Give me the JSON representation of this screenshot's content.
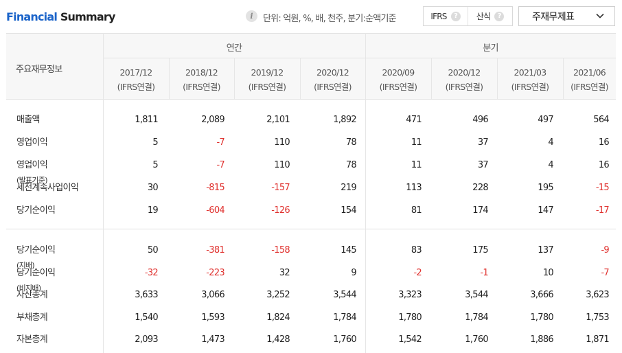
{
  "header": {
    "title_part1": "Financial",
    "title_part2": " Summary",
    "info_icon": "info-icon",
    "unit_text": "단위: 억원, %, 배, 천주, 분기:순액기준",
    "toggle": [
      {
        "label": "IFRS",
        "icon": "question-icon"
      },
      {
        "label": "산식",
        "icon": "question-icon"
      }
    ],
    "question_mark": "?",
    "dropdown": {
      "label": "주재무제표",
      "icon": "chevron-down-icon"
    }
  },
  "table": {
    "corner_label": "주요재무정보",
    "groups": [
      {
        "label": "연간"
      },
      {
        "label": "분기"
      }
    ],
    "columns": [
      {
        "period": "2017/12",
        "basis": "(IFRS연결)"
      },
      {
        "period": "2018/12",
        "basis": "(IFRS연결)"
      },
      {
        "period": "2019/12",
        "basis": "(IFRS연결)"
      },
      {
        "period": "2020/12",
        "basis": "(IFRS연결)"
      },
      {
        "period": "2020/09",
        "basis": "(IFRS연결)"
      },
      {
        "period": "2020/12",
        "basis": "(IFRS연결)"
      },
      {
        "period": "2021/03",
        "basis": "(IFRS연결)"
      },
      {
        "period": "2021/06",
        "basis": "(IFRS연결)"
      }
    ],
    "rows": [
      {
        "label": "매출액",
        "suffix": "",
        "values": [
          "1,811",
          "2,089",
          "2,101",
          "1,892",
          "471",
          "496",
          "497",
          "564"
        ]
      },
      {
        "label": "영업이익",
        "suffix": "",
        "values": [
          "5",
          "-7",
          "110",
          "78",
          "11",
          "37",
          "4",
          "16"
        ]
      },
      {
        "label": "영업이익",
        "suffix": "(발표기준)",
        "values": [
          "5",
          "-7",
          "110",
          "78",
          "11",
          "37",
          "4",
          "16"
        ]
      },
      {
        "label": "세전계속사업이익",
        "suffix": "",
        "values": [
          "30",
          "-815",
          "-157",
          "219",
          "113",
          "228",
          "195",
          "-15"
        ]
      },
      {
        "label": "당기순이익",
        "suffix": "",
        "values": [
          "19",
          "-604",
          "-126",
          "154",
          "81",
          "174",
          "147",
          "-17"
        ]
      },
      {
        "label": "당기순이익",
        "suffix": "(지배)",
        "values": [
          "50",
          "-381",
          "-158",
          "145",
          "83",
          "175",
          "137",
          "-9"
        ]
      },
      {
        "label": "당기순이익",
        "suffix": "(비지배)",
        "values": [
          "-32",
          "-223",
          "32",
          "9",
          "-2",
          "-1",
          "10",
          "-7"
        ]
      },
      {
        "label": "자산총계",
        "suffix": "",
        "values": [
          "3,633",
          "3,066",
          "3,252",
          "3,544",
          "3,323",
          "3,544",
          "3,666",
          "3,623"
        ]
      },
      {
        "label": "부채총계",
        "suffix": "",
        "values": [
          "1,540",
          "1,593",
          "1,824",
          "1,784",
          "1,780",
          "1,784",
          "1,780",
          "1,753"
        ]
      },
      {
        "label": "자본총계",
        "suffix": "",
        "values": [
          "2,093",
          "1,473",
          "1,428",
          "1,760",
          "1,542",
          "1,760",
          "1,886",
          "1,871"
        ]
      }
    ],
    "colors": {
      "negative": "#e0312e",
      "accent": "#1a63c9"
    }
  }
}
